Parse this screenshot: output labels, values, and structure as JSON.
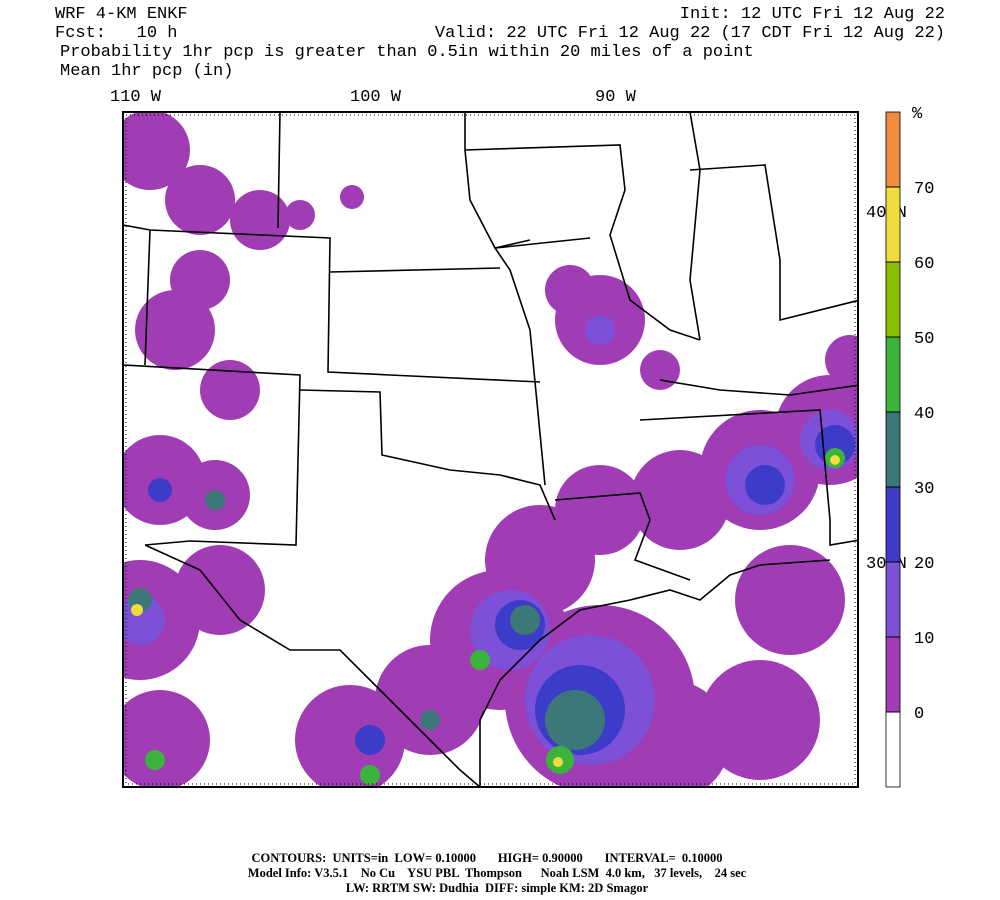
{
  "header": {
    "model": "WRF 4-KM ENKF",
    "init": "Init: 12 UTC Fri 12 Aug 22",
    "forecast": "Fcst:   10 h",
    "valid": "Valid: 22 UTC Fri 12 Aug 22 (17 CDT Fri 12 Aug 22)",
    "field": "Probability 1hr pcp is greater than 0.5in within 20 miles of a point",
    "overlay": "Mean 1hr pcp (in)"
  },
  "map": {
    "longitude_labels": [
      "110 W",
      "100 W",
      "90 W"
    ],
    "latitude_labels": [
      "40 N",
      "30 N"
    ]
  },
  "colorbar": {
    "unit": "%",
    "ticks": [
      0,
      10,
      20,
      30,
      40,
      50,
      60,
      70
    ],
    "colors": [
      "#ffffff",
      "#a03cb4",
      "#7d50d8",
      "#3c3cc8",
      "#3c7878",
      "#3cb43c",
      "#8cbe00",
      "#f0dc3c",
      "#f08c3c"
    ]
  },
  "footer": {
    "contours": "CONTOURS:  UNITS=in  LOW= 0.10000       HIGH= 0.90000       INTERVAL=  0.10000",
    "model_info": "Model Info: V3.5.1    No Cu    YSU PBL  Thompson      Noah LSM  4.0 km,   37 levels,    24 sec",
    "physics": "LW: RRTM SW: Dudhia  DIFF: simple KM: 2D Smagor"
  }
}
